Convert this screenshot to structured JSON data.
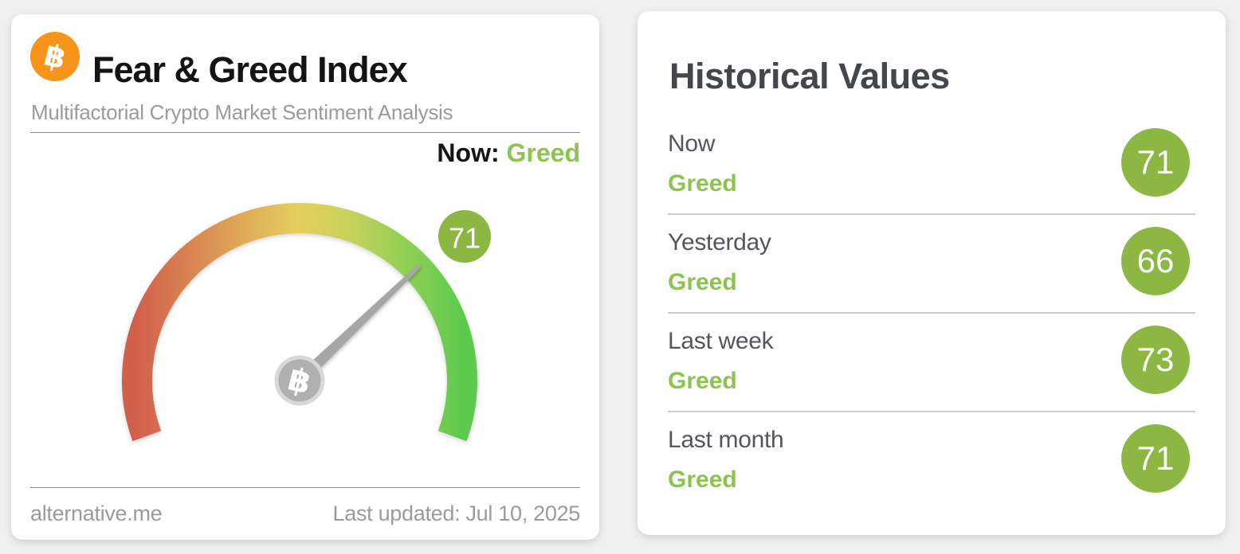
{
  "colors": {
    "greed_green": "#8dc351",
    "badge_green": "#8bb742",
    "bitcoin_orange": "#f7941a",
    "title_black": "#141414",
    "heading_gray": "#43464b",
    "label_gray": "#53565b",
    "muted_gray": "#9b9b9b",
    "needle_gray": "#a6a6a6",
    "page_bg": "#f0f0f0"
  },
  "gauge_card": {
    "bitcoin_symbol": "฿",
    "title": "Fear & Greed Index",
    "subtitle": "Multifactorial Crypto Market Sentiment Analysis",
    "now_label": "Now:",
    "now_value": "Greed",
    "gauge": {
      "value": 71,
      "min": 0,
      "max": 100,
      "badge_value": "71",
      "hub_symbol": "฿",
      "arc_colors": [
        "#d1604b",
        "#d98551",
        "#e0ac57",
        "#e5d05e",
        "#c3d25a",
        "#8ed054",
        "#5dca4e"
      ]
    },
    "footer_left": "alternative.me",
    "footer_right": "Last updated: Jul 10, 2025"
  },
  "historical_card": {
    "title": "Historical Values",
    "rows": [
      {
        "label": "Now",
        "classification": "Greed",
        "value": "71"
      },
      {
        "label": "Yesterday",
        "classification": "Greed",
        "value": "66"
      },
      {
        "label": "Last week",
        "classification": "Greed",
        "value": "73"
      },
      {
        "label": "Last month",
        "classification": "Greed",
        "value": "71"
      }
    ]
  },
  "chart_data": {
    "type": "gauge",
    "title": "Fear & Greed Index",
    "subtitle": "Multifactorial Crypto Market Sentiment Analysis",
    "value": 71,
    "classification": "Greed",
    "min": 0,
    "max": 100,
    "scale_note": "0 = Extreme Fear (red), 100 = Extreme Greed (green)",
    "historical": [
      {
        "label": "Now",
        "value": 71,
        "classification": "Greed"
      },
      {
        "label": "Yesterday",
        "value": 66,
        "classification": "Greed"
      },
      {
        "label": "Last week",
        "value": 73,
        "classification": "Greed"
      },
      {
        "label": "Last month",
        "value": 71,
        "classification": "Greed"
      }
    ],
    "last_updated": "Jul 10, 2025",
    "source": "alternative.me"
  }
}
